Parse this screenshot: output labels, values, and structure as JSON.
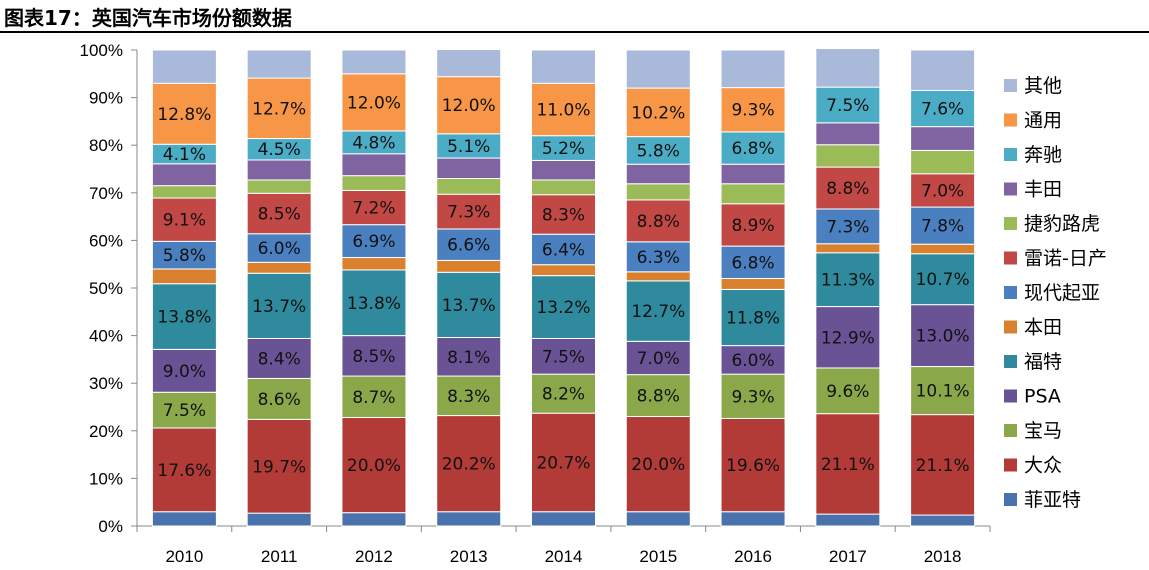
{
  "figure_title": "图表17：英国汽车市场份额数据",
  "chart_data": {
    "type": "bar",
    "stacked": true,
    "percent": true,
    "categories": [
      "2010",
      "2011",
      "2012",
      "2013",
      "2014",
      "2015",
      "2016",
      "2017",
      "2018"
    ],
    "ylim": [
      0,
      100
    ],
    "yticks": [
      "0%",
      "10%",
      "20%",
      "30%",
      "40%",
      "50%",
      "60%",
      "70%",
      "80%",
      "90%",
      "100%"
    ],
    "grid": false,
    "legend_position": "right",
    "series": [
      {
        "name": "菲亚特",
        "color": "#4a72ac",
        "values": [
          3.0,
          2.7,
          2.8,
          3.0,
          3.0,
          3.0,
          3.0,
          2.5,
          2.3
        ],
        "labels": [
          "",
          "",
          "",
          "",
          "",
          "",
          "",
          "",
          ""
        ]
      },
      {
        "name": "大众",
        "color": "#b23b38",
        "values": [
          17.6,
          19.7,
          20.0,
          20.2,
          20.7,
          20.0,
          19.6,
          21.1,
          21.1
        ],
        "labels": [
          "17.6%",
          "19.7%",
          "20.0%",
          "20.2%",
          "20.7%",
          "20.0%",
          "19.6%",
          "21.1%",
          "21.1%"
        ]
      },
      {
        "name": "宝马",
        "color": "#8aa84a",
        "values": [
          7.5,
          8.6,
          8.7,
          8.3,
          8.2,
          8.8,
          9.3,
          9.6,
          10.1
        ],
        "labels": [
          "7.5%",
          "8.6%",
          "8.7%",
          "8.3%",
          "8.2%",
          "8.8%",
          "9.3%",
          "9.6%",
          "10.1%"
        ]
      },
      {
        "name": "PSA",
        "color": "#6a5395",
        "values": [
          9.0,
          8.4,
          8.5,
          8.1,
          7.5,
          7.0,
          6.0,
          12.9,
          13.0
        ],
        "labels": [
          "9.0%",
          "8.4%",
          "8.5%",
          "8.1%",
          "7.5%",
          "7.0%",
          "6.0%",
          "12.9%",
          "13.0%"
        ]
      },
      {
        "name": "福特",
        "color": "#2f8a9e",
        "values": [
          13.8,
          13.7,
          13.8,
          13.7,
          13.2,
          12.7,
          11.8,
          11.3,
          10.7
        ],
        "labels": [
          "13.8%",
          "13.7%",
          "13.8%",
          "13.7%",
          "13.2%",
          "12.7%",
          "11.8%",
          "11.3%",
          "10.7%"
        ]
      },
      {
        "name": "本田",
        "color": "#d9812e",
        "values": [
          3.1,
          2.3,
          2.6,
          2.5,
          2.3,
          1.9,
          2.3,
          1.9,
          2.0
        ],
        "labels": [
          "",
          "",
          "",
          "",
          "",
          "",
          "",
          "",
          ""
        ]
      },
      {
        "name": "现代起亚",
        "color": "#4a7fc0",
        "values": [
          5.8,
          6.0,
          6.9,
          6.6,
          6.4,
          6.3,
          6.8,
          7.3,
          7.8
        ],
        "labels": [
          "5.8%",
          "6.0%",
          "6.9%",
          "6.6%",
          "6.4%",
          "6.3%",
          "6.8%",
          "7.3%",
          "7.8%"
        ]
      },
      {
        "name": "雷诺-日产",
        "color": "#c24845",
        "values": [
          9.1,
          8.5,
          7.2,
          7.3,
          8.3,
          8.8,
          8.9,
          8.8,
          7.0
        ],
        "labels": [
          "9.1%",
          "8.5%",
          "7.2%",
          "7.3%",
          "8.3%",
          "8.8%",
          "8.9%",
          "8.8%",
          "7.0%"
        ]
      },
      {
        "name": "捷豹路虎",
        "color": "#9bbb59",
        "values": [
          2.6,
          2.8,
          3.1,
          3.3,
          3.1,
          3.4,
          4.2,
          4.7,
          4.9
        ],
        "labels": [
          "",
          "",
          "",
          "",
          "",
          "",
          "",
          "",
          ""
        ]
      },
      {
        "name": "丰田",
        "color": "#8064a2",
        "values": [
          4.6,
          4.2,
          4.6,
          4.3,
          4.1,
          4.1,
          4.1,
          4.6,
          5.0
        ],
        "labels": [
          "",
          "",
          "",
          "",
          "",
          "",
          "",
          "",
          ""
        ]
      },
      {
        "name": "奔驰",
        "color": "#4bacc6",
        "values": [
          4.1,
          4.5,
          4.8,
          5.1,
          5.2,
          5.8,
          6.8,
          7.5,
          7.6
        ],
        "labels": [
          "4.1%",
          "4.5%",
          "4.8%",
          "5.1%",
          "5.2%",
          "5.8%",
          "6.8%",
          "7.5%",
          "7.6%"
        ]
      },
      {
        "name": "通用",
        "color": "#f79646",
        "values": [
          12.8,
          12.7,
          12.0,
          12.0,
          11.0,
          10.2,
          9.3,
          0,
          0
        ],
        "labels": [
          "12.8%",
          "12.7%",
          "12.0%",
          "12.0%",
          "11.0%",
          "10.2%",
          "9.3%",
          "",
          ""
        ]
      },
      {
        "name": "其他",
        "color": "#a9b9d9",
        "values": [
          7.0,
          5.9,
          5.0,
          5.7,
          7.0,
          8.0,
          7.9,
          8.1,
          8.5
        ],
        "labels": [
          "",
          "",
          "",
          "",
          "",
          "",
          "",
          "",
          ""
        ]
      }
    ],
    "legend_order": [
      "其他",
      "通用",
      "奔驰",
      "丰田",
      "捷豹路虎",
      "雷诺-日产",
      "现代起亚",
      "本田",
      "福特",
      "PSA",
      "宝马",
      "大众",
      "菲亚特"
    ]
  }
}
